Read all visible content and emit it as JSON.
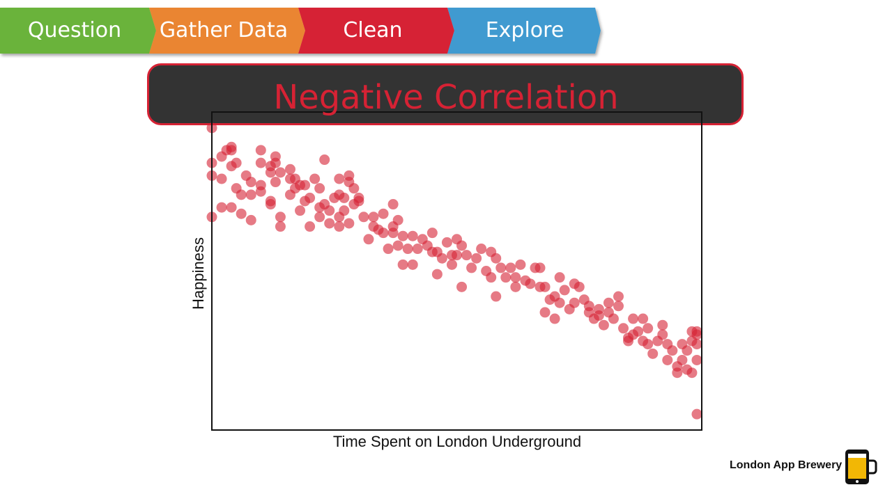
{
  "ribbon": {
    "steps": [
      {
        "label": "Question",
        "color": "#6bb33a"
      },
      {
        "label": "Gather Data",
        "color": "#ea8532"
      },
      {
        "label": "Clean",
        "color": "#d62234"
      },
      {
        "label": "Explore",
        "color": "#3f9ad0"
      }
    ]
  },
  "banner": {
    "title": "Negative Correlation"
  },
  "footer": {
    "brand": "London App Brewery"
  },
  "chart_data": {
    "type": "scatter",
    "title": "Negative Correlation",
    "xlabel": "Time Spent on London Underground",
    "ylabel": "Happiness",
    "xlim": [
      0,
      100
    ],
    "ylim": [
      0,
      100
    ],
    "grid": false,
    "marker_color": "#d62234",
    "points": [
      [
        0,
        95
      ],
      [
        0,
        84
      ],
      [
        0,
        80
      ],
      [
        0,
        67
      ],
      [
        2,
        86
      ],
      [
        2,
        70
      ],
      [
        2,
        79
      ],
      [
        3,
        88
      ],
      [
        4,
        88
      ],
      [
        4,
        89
      ],
      [
        4,
        83
      ],
      [
        4,
        70
      ],
      [
        5,
        84
      ],
      [
        5,
        76
      ],
      [
        6,
        74
      ],
      [
        6,
        68
      ],
      [
        7,
        80
      ],
      [
        8,
        74
      ],
      [
        8,
        66
      ],
      [
        8,
        78
      ],
      [
        10,
        88
      ],
      [
        10,
        84
      ],
      [
        10,
        77
      ],
      [
        10,
        75
      ],
      [
        12,
        72
      ],
      [
        12,
        83
      ],
      [
        12,
        81
      ],
      [
        12,
        71
      ],
      [
        13,
        86
      ],
      [
        13,
        84
      ],
      [
        13,
        78
      ],
      [
        14,
        67
      ],
      [
        14,
        64
      ],
      [
        14,
        81
      ],
      [
        16,
        82
      ],
      [
        16,
        74
      ],
      [
        16,
        79
      ],
      [
        17,
        79
      ],
      [
        17,
        76
      ],
      [
        18,
        69
      ],
      [
        18,
        77
      ],
      [
        19,
        72
      ],
      [
        19,
        77
      ],
      [
        20,
        64
      ],
      [
        20,
        73
      ],
      [
        21,
        79
      ],
      [
        22,
        76
      ],
      [
        22,
        67
      ],
      [
        22,
        70
      ],
      [
        23,
        85
      ],
      [
        23,
        71
      ],
      [
        24,
        65
      ],
      [
        24,
        69
      ],
      [
        25,
        73
      ],
      [
        26,
        79
      ],
      [
        26,
        74
      ],
      [
        26,
        67
      ],
      [
        26,
        64
      ],
      [
        27,
        73
      ],
      [
        27,
        69
      ],
      [
        28,
        65
      ],
      [
        28,
        78
      ],
      [
        28,
        80
      ],
      [
        29,
        71
      ],
      [
        29,
        76
      ],
      [
        30,
        73
      ],
      [
        30,
        72
      ],
      [
        31,
        67
      ],
      [
        32,
        60
      ],
      [
        33,
        64
      ],
      [
        33,
        67
      ],
      [
        34,
        63
      ],
      [
        35,
        62
      ],
      [
        35,
        68
      ],
      [
        36,
        57
      ],
      [
        37,
        71
      ],
      [
        37,
        64
      ],
      [
        37,
        62
      ],
      [
        38,
        58
      ],
      [
        38,
        66
      ],
      [
        39,
        52
      ],
      [
        39,
        61
      ],
      [
        40,
        57
      ],
      [
        41,
        52
      ],
      [
        41,
        61
      ],
      [
        42,
        57
      ],
      [
        43,
        60
      ],
      [
        44,
        58
      ],
      [
        45,
        62
      ],
      [
        45,
        56
      ],
      [
        46,
        56
      ],
      [
        46,
        49
      ],
      [
        47,
        54
      ],
      [
        48,
        59
      ],
      [
        49,
        55
      ],
      [
        49,
        52
      ],
      [
        50,
        55
      ],
      [
        50,
        60
      ],
      [
        51,
        58
      ],
      [
        51,
        45
      ],
      [
        52,
        55
      ],
      [
        53,
        51
      ],
      [
        54,
        54
      ],
      [
        55,
        57
      ],
      [
        56,
        50
      ],
      [
        57,
        48
      ],
      [
        57,
        56
      ],
      [
        58,
        54
      ],
      [
        58,
        42
      ],
      [
        59,
        51
      ],
      [
        60,
        48
      ],
      [
        61,
        51
      ],
      [
        62,
        48
      ],
      [
        62,
        45
      ],
      [
        63,
        52
      ],
      [
        64,
        47
      ],
      [
        65,
        46
      ],
      [
        66,
        51
      ],
      [
        67,
        45
      ],
      [
        67,
        51
      ],
      [
        68,
        45
      ],
      [
        68,
        37
      ],
      [
        69,
        41
      ],
      [
        70,
        42
      ],
      [
        70,
        35
      ],
      [
        71,
        48
      ],
      [
        71,
        40
      ],
      [
        72,
        44
      ],
      [
        73,
        38
      ],
      [
        74,
        46
      ],
      [
        74,
        40
      ],
      [
        75,
        45
      ],
      [
        76,
        41
      ],
      [
        77,
        39
      ],
      [
        77,
        37
      ],
      [
        78,
        35
      ],
      [
        79,
        36
      ],
      [
        79,
        38
      ],
      [
        80,
        33
      ],
      [
        81,
        40
      ],
      [
        81,
        37
      ],
      [
        82,
        35
      ],
      [
        83,
        42
      ],
      [
        83,
        39
      ],
      [
        84,
        32
      ],
      [
        85,
        29
      ],
      [
        85,
        28
      ],
      [
        86,
        30
      ],
      [
        86,
        35
      ],
      [
        87,
        31
      ],
      [
        88,
        28
      ],
      [
        88,
        35
      ],
      [
        89,
        32
      ],
      [
        89,
        27
      ],
      [
        90,
        24
      ],
      [
        91,
        28
      ],
      [
        92,
        33
      ],
      [
        92,
        30
      ],
      [
        93,
        27
      ],
      [
        93,
        22
      ],
      [
        94,
        25
      ],
      [
        95,
        20
      ],
      [
        95,
        18
      ],
      [
        96,
        27
      ],
      [
        96,
        22
      ],
      [
        97,
        19
      ],
      [
        97,
        25
      ],
      [
        98,
        28
      ],
      [
        98,
        31
      ],
      [
        98,
        18
      ],
      [
        99,
        22
      ],
      [
        99,
        27
      ],
      [
        99,
        30
      ],
      [
        99,
        31
      ],
      [
        99,
        5
      ]
    ]
  }
}
